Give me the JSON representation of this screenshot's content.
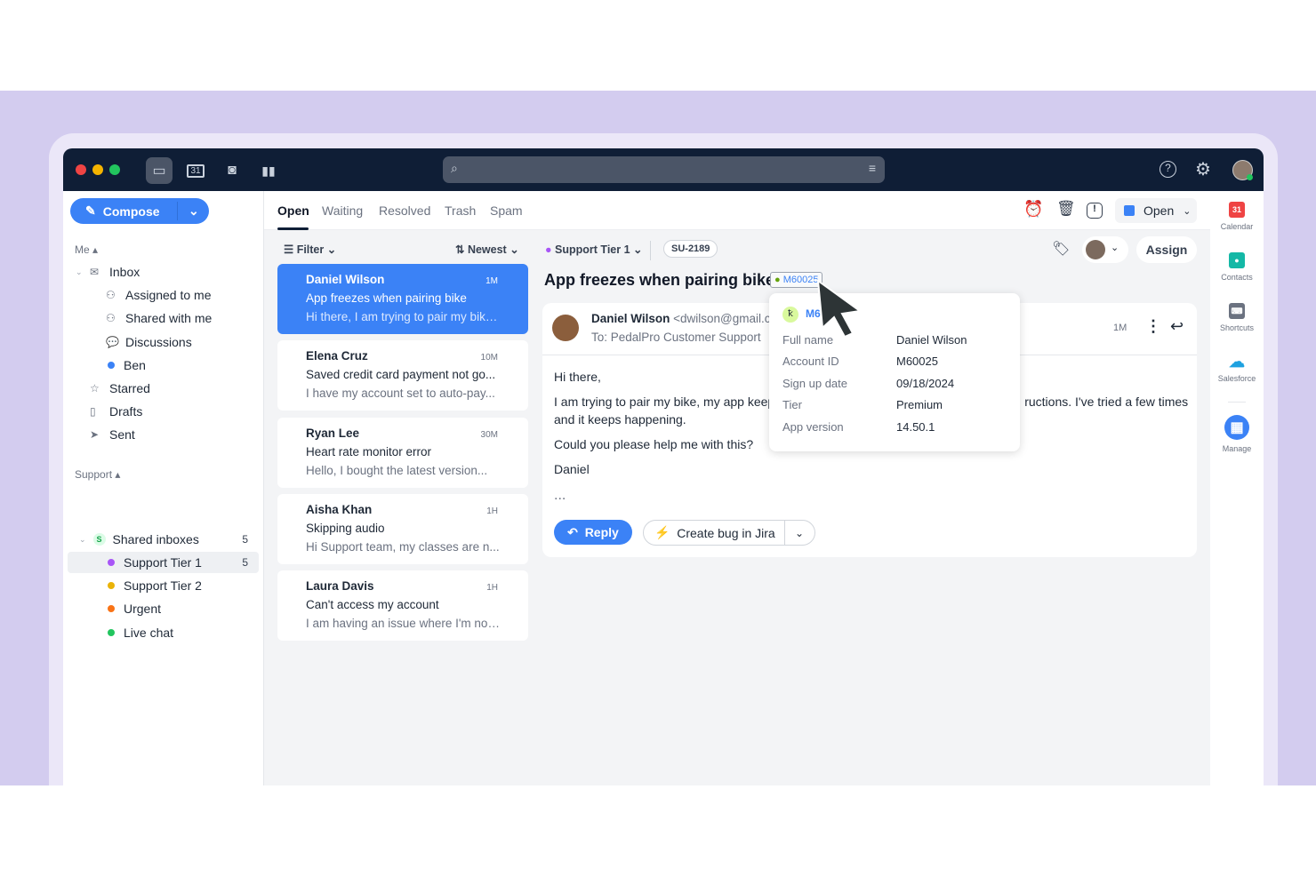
{
  "titlebar": {
    "nav_icons": [
      "inbox-icon",
      "calendar-icon",
      "contacts-icon",
      "analytics-icon"
    ],
    "calendar_day": "31",
    "right_icons": [
      "help-icon",
      "settings-icon",
      "avatar"
    ]
  },
  "sidebar": {
    "compose_label": "Compose",
    "me_label": "Me",
    "me_items": [
      {
        "label": "Inbox",
        "icon": "inbox-icon"
      },
      {
        "label": "Assigned to me",
        "icon": "user-icon"
      },
      {
        "label": "Shared with me",
        "icon": "users-icon"
      },
      {
        "label": "Discussions",
        "icon": "chat-icon"
      },
      {
        "label": "Ben",
        "color": "#3b82f6"
      },
      {
        "label": "Starred",
        "icon": "star-icon"
      },
      {
        "label": "Drafts",
        "icon": "draft-icon"
      },
      {
        "label": "Sent",
        "icon": "send-icon"
      }
    ],
    "support_label": "Support",
    "shared_inboxes": {
      "label": "Shared inboxes",
      "badge": "S",
      "count": "5"
    },
    "support_items": [
      {
        "label": "Support Tier 1",
        "color": "#a855f7",
        "count": "5",
        "selected": true
      },
      {
        "label": "Support Tier 2",
        "color": "#eab308"
      },
      {
        "label": "Urgent",
        "color": "#f97316"
      },
      {
        "label": "Live chat",
        "color": "#22c55e"
      }
    ]
  },
  "tabs": [
    {
      "label": "Open",
      "active": true
    },
    {
      "label": "Waiting"
    },
    {
      "label": "Resolved"
    },
    {
      "label": "Trash"
    },
    {
      "label": "Spam"
    }
  ],
  "toolbar": {
    "icons": [
      "snooze-icon",
      "trash-icon",
      "spam-icon"
    ],
    "status": "Open",
    "status_color": "#3b82f6"
  },
  "list": {
    "filter": "Filter",
    "sort": "Newest",
    "items": [
      {
        "name": "Daniel Wilson",
        "time": "1M",
        "subject": "App freezes when pairing bike",
        "preview": "Hi there, I am trying to pair my bike...",
        "selected": true
      },
      {
        "name": "Elena Cruz",
        "time": "10M",
        "subject": "Saved credit card payment not go...",
        "preview": "I have my account set to auto-pay..."
      },
      {
        "name": "Ryan Lee",
        "time": "30M",
        "subject": "Heart rate monitor error",
        "preview": "Hello, I bought the latest version..."
      },
      {
        "name": "Aisha Khan",
        "time": "1H",
        "subject": "Skipping audio",
        "preview": "Hi Support team, my classes are n..."
      },
      {
        "name": "Laura Davis",
        "time": "1H",
        "subject": "Can't access my account",
        "preview": "I am having an issue where I'm not..."
      }
    ]
  },
  "conversation": {
    "inbox": "Support Tier 1",
    "ticket_id": "SU-2189",
    "assign": "Assign",
    "title": "App freezes when pairing bike",
    "account_chip": "M60025",
    "sender": "Daniel Wilson",
    "sender_email": "<dwilson@gmail.c",
    "to": "To: PedalPro Customer Support",
    "time": "1M",
    "body": [
      "Hi there,",
      "I am trying to pair my bike, my app keep",
      "ructions. I've tried a few times",
      "and it keeps happening.",
      "Could you please help me with this?",
      "Daniel"
    ],
    "more": "...",
    "reply": "Reply",
    "jira": "Create bug in Jira"
  },
  "popup": {
    "id": "M6",
    "rows": [
      {
        "k": "Full name",
        "v": "Daniel Wilson"
      },
      {
        "k": "Account ID",
        "v": "M60025"
      },
      {
        "k": "Sign up date",
        "v": "09/18/2024"
      },
      {
        "k": "Tier",
        "v": "Premium"
      },
      {
        "k": "App version",
        "v": "14.50.1"
      }
    ]
  },
  "rail": [
    {
      "label": "Calendar",
      "color": "#ef4444",
      "glyph": "31"
    },
    {
      "label": "Contacts",
      "color": "#14b8a6",
      "glyph": "●"
    },
    {
      "label": "Shortcuts",
      "color": "#6b7280",
      "glyph": "⌨"
    },
    {
      "label": "Salesforce",
      "color": "#1ea1e0",
      "glyph": "☁"
    },
    {
      "label": "Manage",
      "color": "#3b82f6",
      "glyph": "▦"
    }
  ]
}
